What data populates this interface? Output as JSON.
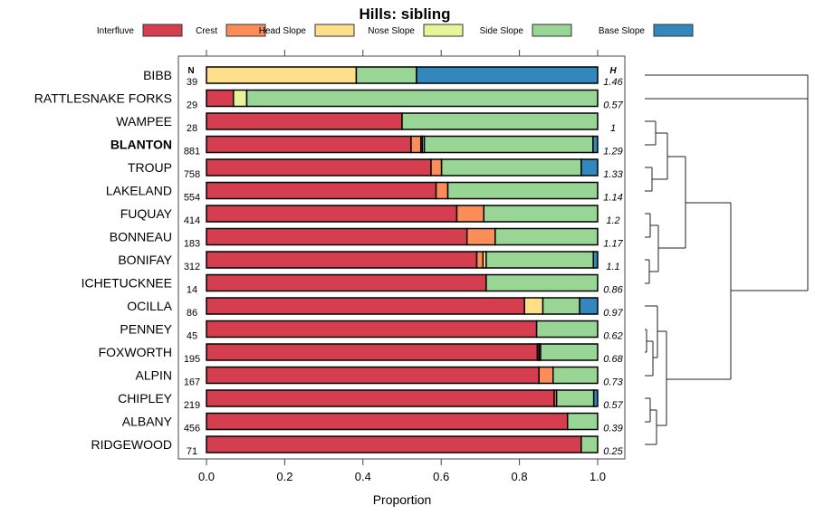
{
  "chart_data": {
    "type": "bar",
    "orientation": "horizontal-stacked",
    "title": "Hills: sibling",
    "xlabel": "Proportion",
    "xlim": [
      0,
      1
    ],
    "xticks": [
      "0.0",
      "0.2",
      "0.4",
      "0.6",
      "0.8",
      "1.0"
    ],
    "n_header": "N",
    "h_header": "H",
    "legend_position": "top",
    "legend": [
      {
        "name": "Interfluve",
        "color": "#D53E4F"
      },
      {
        "name": "Crest",
        "color": "#FC8D59"
      },
      {
        "name": "Head Slope",
        "color": "#FEE08B"
      },
      {
        "name": "Nose Slope",
        "color": "#E6F598"
      },
      {
        "name": "Side Slope",
        "color": "#99D594"
      },
      {
        "name": "Base Slope",
        "color": "#3288BD"
      }
    ],
    "rows": [
      {
        "name": "BIBB",
        "n": "39",
        "h": "1.46",
        "bold": false,
        "values": [
          0,
          0,
          0.383,
          0,
          0.154,
          0.463
        ]
      },
      {
        "name": "RATTLESNAKE FORKS",
        "n": "29",
        "h": "0.57",
        "bold": false,
        "values": [
          0.069,
          0,
          0,
          0.034,
          0.897,
          0
        ]
      },
      {
        "name": "WAMPEE",
        "n": "28",
        "h": "1",
        "bold": false,
        "values": [
          0.5,
          0,
          0,
          0,
          0.5,
          0
        ]
      },
      {
        "name": "BLANTON",
        "n": "881",
        "h": "1.29",
        "bold": true,
        "values": [
          0.523,
          0.025,
          0.004,
          0.005,
          0.431,
          0.012
        ]
      },
      {
        "name": "TROUP",
        "n": "758",
        "h": "1.33",
        "bold": false,
        "values": [
          0.574,
          0.027,
          0,
          0,
          0.357,
          0.042
        ]
      },
      {
        "name": "LAKELAND",
        "n": "554",
        "h": "1.14",
        "bold": false,
        "values": [
          0.587,
          0.03,
          0,
          0,
          0.383,
          0
        ]
      },
      {
        "name": "FUQUAY",
        "n": "414",
        "h": "1.2",
        "bold": false,
        "values": [
          0.64,
          0.069,
          0,
          0,
          0.291,
          0
        ]
      },
      {
        "name": "BONNEAU",
        "n": "183",
        "h": "1.17",
        "bold": false,
        "values": [
          0.666,
          0.072,
          0,
          0,
          0.262,
          0
        ]
      },
      {
        "name": "BONIFAY",
        "n": "312",
        "h": "1.1",
        "bold": false,
        "values": [
          0.691,
          0.016,
          0.008,
          0,
          0.274,
          0.011
        ]
      },
      {
        "name": "ICHETUCKNEE",
        "n": "14",
        "h": "0.86",
        "bold": false,
        "values": [
          0.715,
          0,
          0,
          0,
          0.285,
          0
        ]
      },
      {
        "name": "OCILLA",
        "n": "86",
        "h": "0.97",
        "bold": false,
        "values": [
          0.813,
          0,
          0.047,
          0,
          0.094,
          0.046
        ]
      },
      {
        "name": "PENNEY",
        "n": "45",
        "h": "0.62",
        "bold": false,
        "values": [
          0.844,
          0,
          0,
          0,
          0.156,
          0
        ]
      },
      {
        "name": "FOXWORTH",
        "n": "195",
        "h": "0.68",
        "bold": false,
        "values": [
          0.846,
          0.004,
          0.004,
          0,
          0.146,
          0
        ]
      },
      {
        "name": "ALPIN",
        "n": "167",
        "h": "0.73",
        "bold": false,
        "values": [
          0.85,
          0.036,
          0,
          0,
          0.114,
          0
        ]
      },
      {
        "name": "CHIPLEY",
        "n": "219",
        "h": "0.57",
        "bold": false,
        "values": [
          0.889,
          0.006,
          0,
          0,
          0.095,
          0.01
        ]
      },
      {
        "name": "ALBANY",
        "n": "456",
        "h": "0.39",
        "bold": false,
        "values": [
          0.923,
          0,
          0,
          0,
          0.077,
          0
        ]
      },
      {
        "name": "RIDGEWOOD",
        "n": "71",
        "h": "0.25",
        "bold": false,
        "values": [
          0.958,
          0,
          0,
          0,
          0.042,
          0
        ]
      }
    ]
  }
}
